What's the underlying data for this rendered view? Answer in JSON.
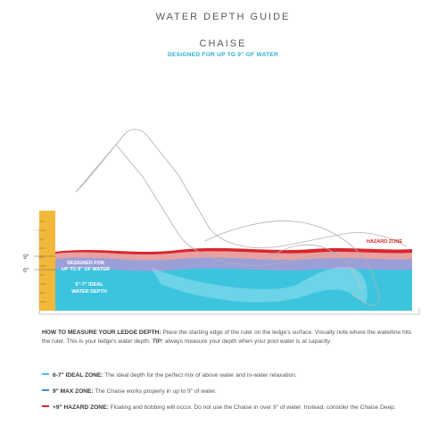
{
  "header": {
    "title": "WATER DEPTH GUIDE",
    "product": "CHAISE",
    "tagline": "DESIGNED FOR UP TO 9\" OF WATER"
  },
  "diagram": {
    "ruler_labels": [
      "9\"",
      "6\""
    ],
    "hazard_label": "HAZARD ZONE",
    "max_label_lines": [
      "DESIGNED FOR",
      "UP TO 9\" OF WATER"
    ],
    "ideal_label_lines": [
      "6\"-7\" IDEAL",
      "WATER DEPTH"
    ],
    "colors": {
      "ideal": "#3cc4de",
      "max": "#3f9fd2",
      "hazard": "#d9262e",
      "ruler": "#f2b83a"
    }
  },
  "instructions": {
    "heading": "HOW TO MEASURE YOUR LEDGE DEPTH:",
    "body": " Place the starting edge of the ruler on the ledge's surface. Visually note where the waterline hits the ruler. This is your ledge's water depth. ",
    "tip_label": "TIP:",
    "tip": " always measure your depth when your pool water is at capacity."
  },
  "legend": [
    {
      "label": "6-7\" IDEAL ZONE:",
      "text": " The ideal depth for the perfect mix of above water and in-water relaxation.",
      "color": "#3cc4de"
    },
    {
      "label": "9\" MAX ZONE:",
      "text": " The Chaise works properly in up to 9\" of water.",
      "color": "#3f8fd0"
    },
    {
      "label": "+9\" HAZARD ZONE:",
      "text": " Floating and bobbing will occur. Do not use the Chaise in over 9\" of water. Instead, consider the Chaise Deep.",
      "color": "#d9262e"
    }
  ]
}
